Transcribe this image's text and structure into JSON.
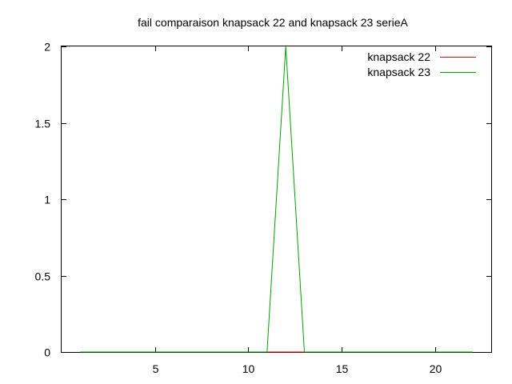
{
  "chart_data": {
    "type": "line",
    "title": "fail comparaison knapsack 22 and knapsack 23 serieA",
    "xlabel": "",
    "ylabel": "",
    "xlim": [
      0,
      23
    ],
    "ylim": [
      0,
      2
    ],
    "xticks": [
      5,
      10,
      15,
      20
    ],
    "xtick_labels": [
      "5",
      "10",
      "15",
      "20"
    ],
    "yticks": [
      0,
      0.5,
      1,
      1.5,
      2
    ],
    "ytick_labels": [
      "0",
      "0.5",
      "1",
      "1.5",
      "2"
    ],
    "grid": false,
    "legend_position": "top-right",
    "series": [
      {
        "name": "knapsack 22",
        "color": "#ff0000",
        "x": [
          1,
          2,
          3,
          4,
          5,
          6,
          7,
          8,
          9,
          10,
          11,
          12,
          13,
          14,
          15,
          16,
          17,
          18,
          19,
          20,
          21,
          22
        ],
        "y": [
          0,
          0,
          0,
          0,
          0,
          0,
          0,
          0,
          0,
          0,
          0,
          0,
          0,
          0,
          0,
          0,
          0,
          0,
          0,
          0,
          0,
          0
        ]
      },
      {
        "name": "knapsack 23",
        "color": "#00a000",
        "x": [
          1,
          2,
          3,
          4,
          5,
          6,
          7,
          8,
          9,
          10,
          11,
          12,
          13,
          14,
          15,
          16,
          17,
          18,
          19,
          20,
          21,
          22
        ],
        "y": [
          0,
          0,
          0,
          0,
          0,
          0,
          0,
          0,
          0,
          0,
          0,
          2,
          0,
          0,
          0,
          0,
          0,
          0,
          0,
          0,
          0,
          0
        ]
      }
    ]
  }
}
